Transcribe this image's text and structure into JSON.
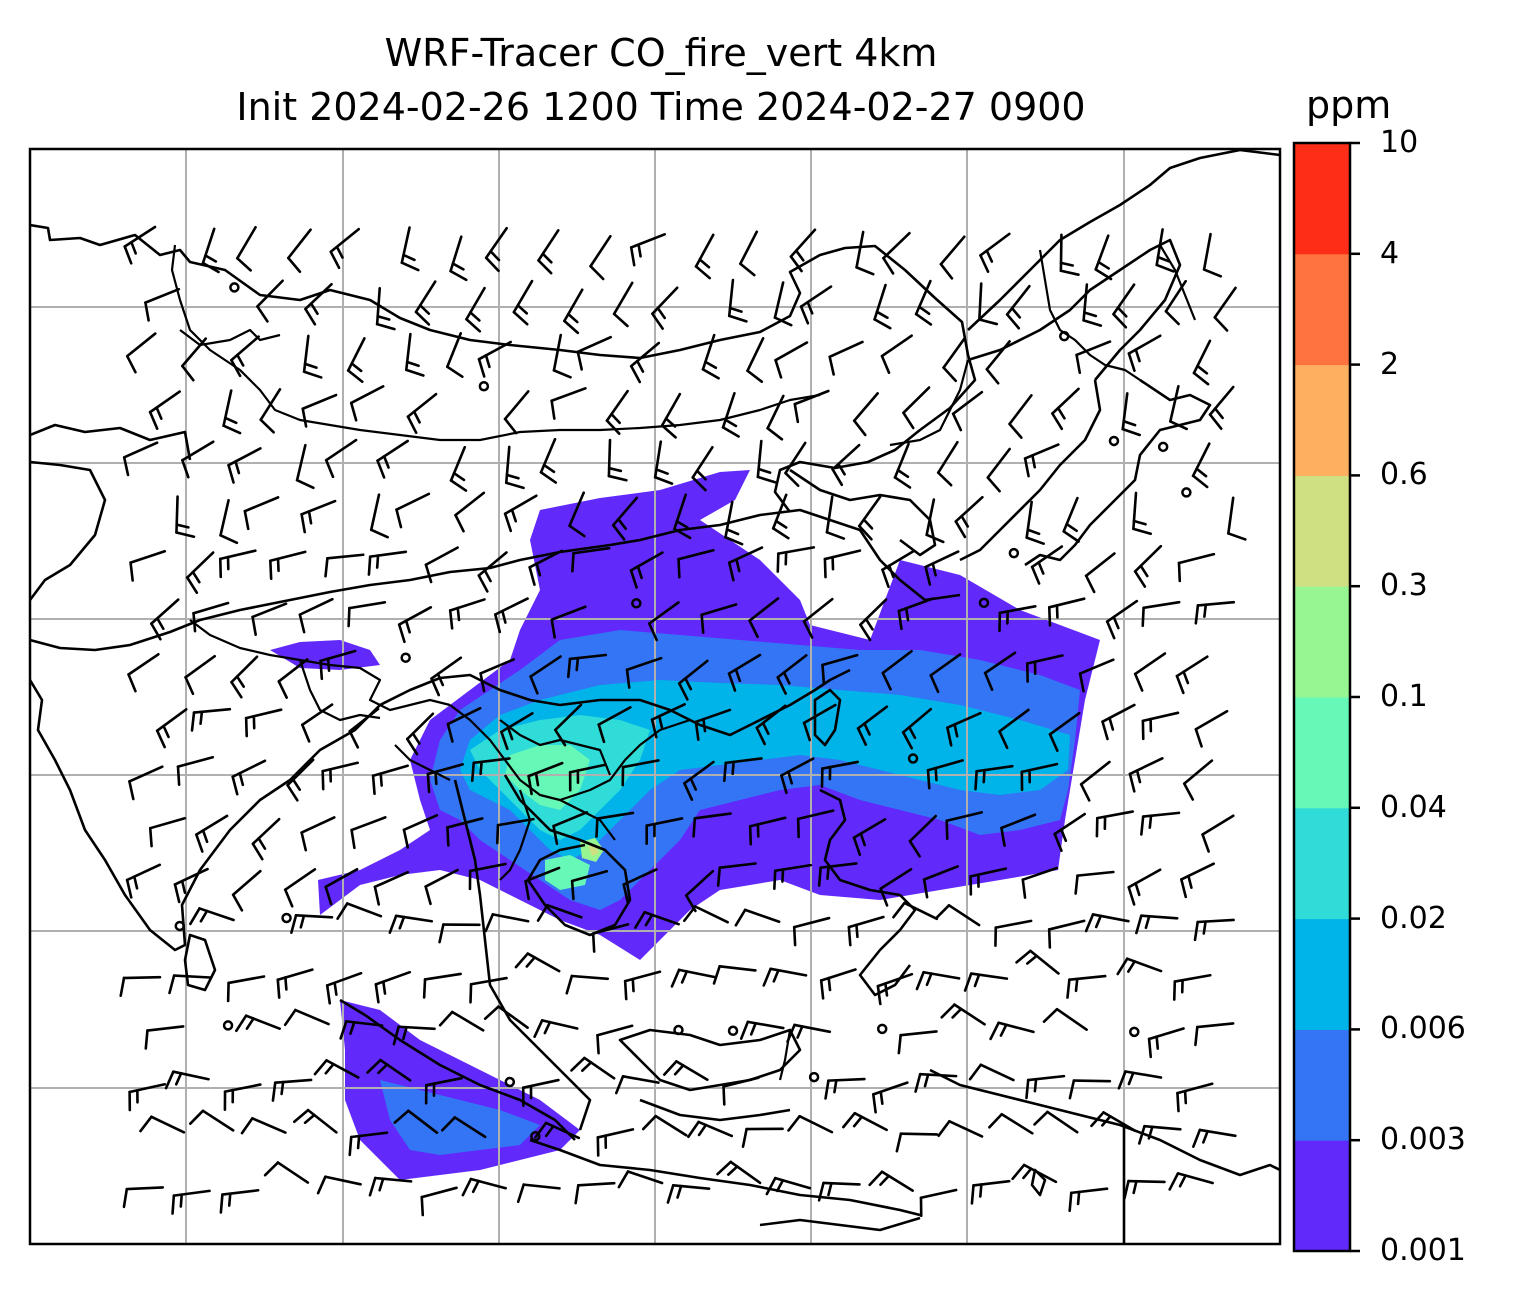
{
  "title_line1": "WRF-Tracer CO_fire_vert 4km",
  "title_line2": "Init 2024-02-26 1200 Time 2024-02-27 0900",
  "colorbar": {
    "unit": "ppm",
    "levels": [
      "0.001",
      "0.003",
      "0.006",
      "0.02",
      "0.04",
      "0.1",
      "0.3",
      "0.6",
      "2",
      "4",
      "10"
    ],
    "colors": [
      "#6229fb",
      "#3375f5",
      "#00b4ea",
      "#2fdcd8",
      "#66f8b6",
      "#98f692",
      "#cfe083",
      "#ffaf60",
      "#fe733e",
      "#fe2d17"
    ]
  },
  "map": {
    "gridlines": true,
    "features": [
      "coastlines",
      "country-borders",
      "wind-barbs",
      "co-concentration-plume"
    ],
    "colors": {
      "grid": "#b0b0b0",
      "coast": "#000000",
      "barb": "#000000"
    }
  }
}
